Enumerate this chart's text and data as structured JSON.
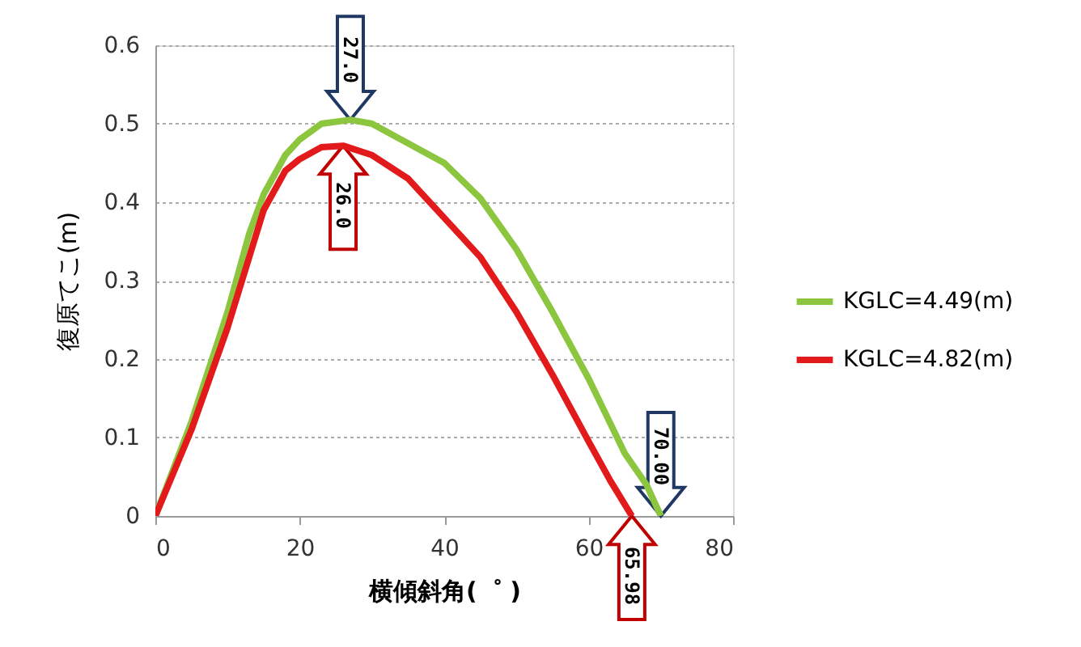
{
  "chart_data": {
    "type": "line",
    "xlabel": "横傾斜角(゜ )",
    "ylabel": "復原てこ(m)",
    "xlim": [
      0,
      80
    ],
    "xticks": [
      0,
      20,
      40,
      60,
      80
    ],
    "ylim": [
      0,
      0.6
    ],
    "yticks": [
      {
        "value": 0,
        "label": "0"
      },
      0.1,
      0.2,
      0.3,
      0.4,
      0.5,
      0.6
    ],
    "grid": "y",
    "legend": "right",
    "marker": "none",
    "line_style": "solid",
    "series": [
      {
        "name": "KGLC=4.49(m)",
        "color": "#8cc63f",
        "x": [
          0,
          5,
          10,
          13,
          15,
          18,
          20,
          23,
          27,
          30,
          35,
          40,
          45,
          50,
          55,
          60,
          65,
          68,
          70
        ],
        "values": [
          0,
          0.12,
          0.26,
          0.36,
          0.41,
          0.46,
          0.48,
          0.5,
          0.505,
          0.5,
          0.475,
          0.45,
          0.405,
          0.34,
          0.26,
          0.175,
          0.08,
          0.04,
          0
        ]
      },
      {
        "name": "KGLC=4.82(m)",
        "color": "#e31a1c",
        "x": [
          0,
          5,
          10,
          15,
          18,
          20,
          23,
          26,
          30,
          35,
          40,
          45,
          50,
          55,
          60,
          63,
          65.98
        ],
        "values": [
          0,
          0.11,
          0.24,
          0.39,
          0.44,
          0.455,
          0.47,
          0.472,
          0.46,
          0.43,
          0.38,
          0.33,
          0.26,
          0.18,
          0.095,
          0.045,
          0
        ]
      }
    ],
    "annotations": [
      {
        "text": "27.0",
        "x": 27,
        "y": 0.505
      },
      {
        "text": "26.0",
        "x": 26,
        "y": 0.472
      },
      {
        "text": "70.00",
        "x": 70,
        "y": 0
      },
      {
        "text": "65.98",
        "x": 65.98,
        "y": 0
      }
    ]
  }
}
